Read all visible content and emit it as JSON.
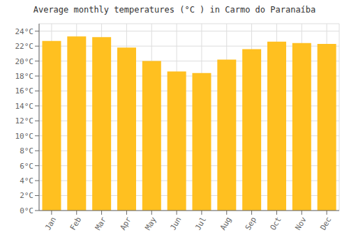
{
  "chart_data": {
    "type": "bar",
    "title": "Average monthly temperatures (°C ) in Carmo do Paranaíba",
    "categories": [
      "Jan",
      "Feb",
      "Mar",
      "Apr",
      "May",
      "Jun",
      "Jul",
      "Aug",
      "Sep",
      "Oct",
      "Nov",
      "Dec"
    ],
    "values": [
      22.7,
      23.3,
      23.2,
      21.8,
      20.0,
      18.6,
      18.4,
      20.2,
      21.6,
      22.6,
      22.4,
      22.3
    ],
    "color": "#FFC020",
    "ylim": [
      0,
      25
    ],
    "yticks": [
      {
        "value": 0,
        "label": "0°C"
      },
      {
        "value": 2,
        "label": "2°C"
      },
      {
        "value": 4,
        "label": "4°C"
      },
      {
        "value": 6,
        "label": "6°C"
      },
      {
        "value": 8,
        "label": "8°C"
      },
      {
        "value": 10,
        "label": "10°C"
      },
      {
        "value": 12,
        "label": "12°C"
      },
      {
        "value": 14,
        "label": "14°C"
      },
      {
        "value": 16,
        "label": "16°C"
      },
      {
        "value": 18,
        "label": "18°C"
      },
      {
        "value": 20,
        "label": "20°C"
      },
      {
        "value": 22,
        "label": "22°C"
      },
      {
        "value": 24,
        "label": "24°C"
      }
    ],
    "grid": true
  }
}
